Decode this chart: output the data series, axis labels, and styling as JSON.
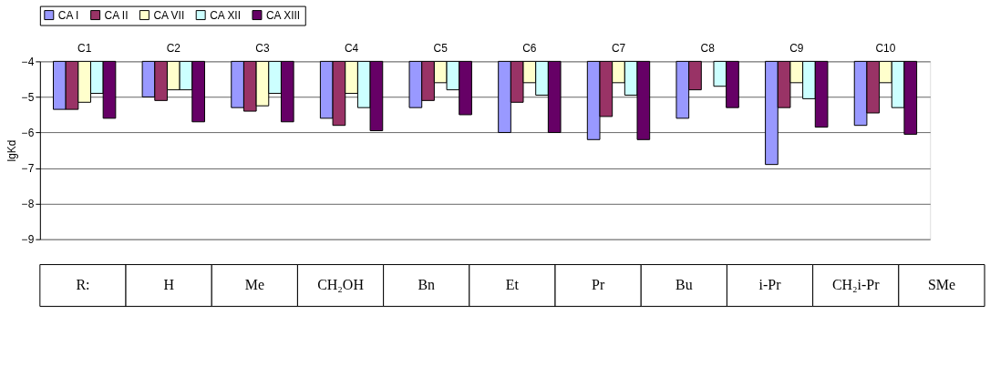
{
  "chart_data": {
    "type": "bar",
    "ylabel": "lgKd",
    "categories": [
      "C1",
      "C2",
      "C3",
      "C4",
      "C5",
      "C6",
      "C7",
      "C8",
      "C9",
      "C10"
    ],
    "series": [
      {
        "name": "CA I",
        "color": "#9999ff",
        "values": [
          -5.35,
          -5.0,
          -5.3,
          -5.6,
          -5.3,
          -6.0,
          -6.2,
          -5.6,
          -6.9,
          -5.8
        ]
      },
      {
        "name": "CA II",
        "color": "#993366",
        "values": [
          -5.35,
          -5.1,
          -5.4,
          -5.8,
          -5.1,
          -5.15,
          -5.55,
          -4.8,
          -5.3,
          -5.45
        ]
      },
      {
        "name": "CA VII",
        "color": "#ffffcc",
        "values": [
          -5.15,
          -4.8,
          -5.25,
          -4.9,
          -4.6,
          -4.6,
          -4.6,
          null,
          -4.6,
          -4.6
        ]
      },
      {
        "name": "CA XII",
        "color": "#ccffff",
        "values": [
          -4.9,
          -4.8,
          -4.9,
          -5.3,
          -4.8,
          -4.95,
          -4.95,
          -4.7,
          -5.05,
          -5.3
        ]
      },
      {
        "name": "CA XIII",
        "color": "#660066",
        "values": [
          -5.6,
          -5.7,
          -5.7,
          -5.95,
          -5.5,
          -6.0,
          -6.2,
          -5.3,
          -5.85,
          -6.05
        ]
      }
    ],
    "ylim": [
      -9,
      -4
    ],
    "yticks": [
      -9,
      -8,
      -7,
      -6,
      -5,
      -4
    ],
    "grid": "y",
    "legend": "top",
    "annotations": [
      "R:",
      "H",
      "Me",
      "CH₂OH",
      "Bn",
      "Et",
      "Pr",
      "Bu",
      "i-Pr",
      "CH₂i-Pr",
      "SMe"
    ]
  }
}
